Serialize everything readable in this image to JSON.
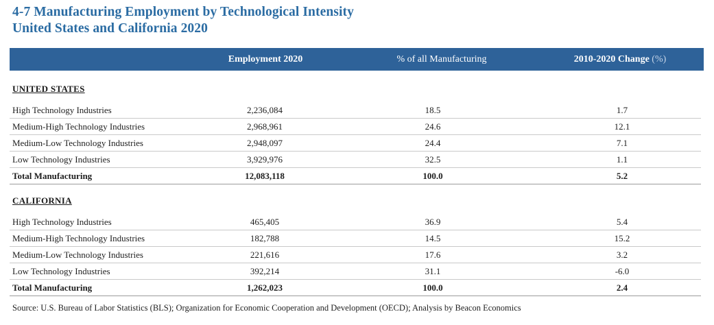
{
  "title": {
    "line1": "4-7 Manufacturing Employment by Technological Intensity",
    "line2": "United States and California 2020"
  },
  "columns": {
    "employment": "Employment 2020",
    "pct_mfg": "% of all Manufacturing",
    "change": "2010-2020 Change",
    "change_unit": "(%)"
  },
  "sections": [
    {
      "title": "UNITED STATES",
      "rows": [
        {
          "label": "High Technology Industries",
          "employment": "2,236,084",
          "pct": "18.5",
          "change": "1.7"
        },
        {
          "label": "Medium-High Technology Industries",
          "employment": "2,968,961",
          "pct": "24.6",
          "change": "12.1"
        },
        {
          "label": "Medium-Low Technology Industries",
          "employment": "2,948,097",
          "pct": "24.4",
          "change": "7.1"
        },
        {
          "label": "Low Technology Industries",
          "employment": "3,929,976",
          "pct": "32.5",
          "change": "1.1"
        },
        {
          "label": "Total Manufacturing",
          "employment": "12,083,118",
          "pct": "100.0",
          "change": "5.2"
        }
      ]
    },
    {
      "title": "CALIFORNIA",
      "rows": [
        {
          "label": "High Technology Industries",
          "employment": "465,405",
          "pct": "36.9",
          "change": "5.4"
        },
        {
          "label": "Medium-High Technology Industries",
          "employment": "182,788",
          "pct": "14.5",
          "change": "15.2"
        },
        {
          "label": "Medium-Low Technology Industries",
          "employment": "221,616",
          "pct": "17.6",
          "change": "3.2"
        },
        {
          "label": "Low Technology Industries",
          "employment": "392,214",
          "pct": "31.1",
          "change": "-6.0"
        },
        {
          "label": "Total Manufacturing",
          "employment": "1,262,023",
          "pct": "100.0",
          "change": "2.4"
        }
      ]
    }
  ],
  "source": "Source: U.S. Bureau of Labor Statistics (BLS); Organization for Economic Cooperation and Development (OECD); Analysis by Beacon Economics",
  "colors": {
    "title": "#2b6ca3",
    "header_bg": "#2e6299"
  }
}
